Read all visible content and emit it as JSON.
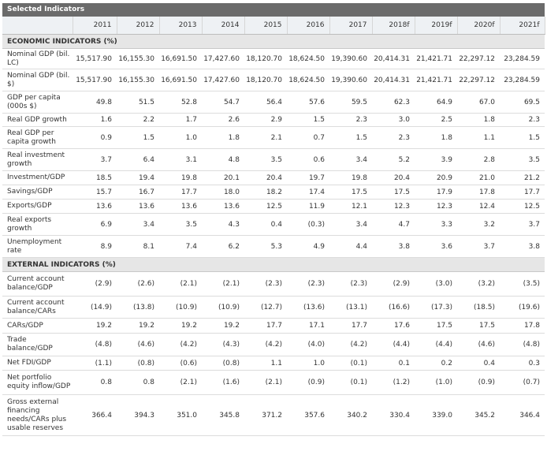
{
  "title": "Selected Indicators",
  "years": [
    "2011",
    "2012",
    "2013",
    "2014",
    "2015",
    "2016",
    "2017",
    "2018f",
    "2019f",
    "2020f",
    "2021f"
  ],
  "sections": [
    {
      "name": "ECONOMIC INDICATORS (%)",
      "rows": [
        {
          "label": "Nominal GDP (bil. LC)",
          "values": [
            "15,517.90",
            "16,155.30",
            "16,691.50",
            "17,427.60",
            "18,120.70",
            "18,624.50",
            "19,390.60",
            "20,414.31",
            "21,421.71",
            "22,297.12",
            "23,284.59"
          ]
        },
        {
          "label": "Nominal GDP (bil. $)",
          "values": [
            "15,517.90",
            "16,155.30",
            "16,691.50",
            "17,427.60",
            "18,120.70",
            "18,624.50",
            "19,390.60",
            "20,414.31",
            "21,421.71",
            "22,297.12",
            "23,284.59"
          ]
        },
        {
          "label": "GDP per capita (000s $)",
          "values": [
            "49.8",
            "51.5",
            "52.8",
            "54.7",
            "56.4",
            "57.6",
            "59.5",
            "62.3",
            "64.9",
            "67.0",
            "69.5"
          ]
        },
        {
          "label": "Real GDP growth",
          "values": [
            "1.6",
            "2.2",
            "1.7",
            "2.6",
            "2.9",
            "1.5",
            "2.3",
            "3.0",
            "2.5",
            "1.8",
            "2.3"
          ]
        },
        {
          "label": "Real GDP per capita growth",
          "values": [
            "0.9",
            "1.5",
            "1.0",
            "1.8",
            "2.1",
            "0.7",
            "1.5",
            "2.3",
            "1.8",
            "1.1",
            "1.5"
          ]
        },
        {
          "label": "Real investment growth",
          "values": [
            "3.7",
            "6.4",
            "3.1",
            "4.8",
            "3.5",
            "0.6",
            "3.4",
            "5.2",
            "3.9",
            "2.8",
            "3.5"
          ]
        },
        {
          "label": "Investment/GDP",
          "values": [
            "18.5",
            "19.4",
            "19.8",
            "20.1",
            "20.4",
            "19.7",
            "19.8",
            "20.4",
            "20.9",
            "21.0",
            "21.2"
          ]
        },
        {
          "label": "Savings/GDP",
          "values": [
            "15.7",
            "16.7",
            "17.7",
            "18.0",
            "18.2",
            "17.4",
            "17.5",
            "17.5",
            "17.9",
            "17.8",
            "17.7"
          ]
        },
        {
          "label": "Exports/GDP",
          "values": [
            "13.6",
            "13.6",
            "13.6",
            "13.6",
            "12.5",
            "11.9",
            "12.1",
            "12.3",
            "12.3",
            "12.4",
            "12.5"
          ]
        },
        {
          "label": "Real exports growth",
          "values": [
            "6.9",
            "3.4",
            "3.5",
            "4.3",
            "0.4",
            "(0.3)",
            "3.4",
            "4.7",
            "3.3",
            "3.2",
            "3.7"
          ]
        },
        {
          "label": "Unemployment rate",
          "values": [
            "8.9",
            "8.1",
            "7.4",
            "6.2",
            "5.3",
            "4.9",
            "4.4",
            "3.8",
            "3.6",
            "3.7",
            "3.8"
          ]
        }
      ]
    },
    {
      "name": "EXTERNAL INDICATORS (%)",
      "rows": [
        {
          "label": "Current account balance/GDP",
          "values": [
            "(2.9)",
            "(2.6)",
            "(2.1)",
            "(2.1)",
            "(2.3)",
            "(2.3)",
            "(2.3)",
            "(2.9)",
            "(3.0)",
            "(3.2)",
            "(3.5)"
          ]
        },
        {
          "label": "Current account balance/CARs",
          "values": [
            "(14.9)",
            "(13.8)",
            "(10.9)",
            "(10.9)",
            "(12.7)",
            "(13.6)",
            "(13.1)",
            "(16.6)",
            "(17.3)",
            "(18.5)",
            "(19.6)"
          ]
        },
        {
          "label": "CARs/GDP",
          "values": [
            "19.2",
            "19.2",
            "19.2",
            "19.2",
            "17.7",
            "17.1",
            "17.7",
            "17.6",
            "17.5",
            "17.5",
            "17.8"
          ]
        },
        {
          "label": "Trade balance/GDP",
          "values": [
            "(4.8)",
            "(4.6)",
            "(4.2)",
            "(4.3)",
            "(4.2)",
            "(4.0)",
            "(4.2)",
            "(4.4)",
            "(4.4)",
            "(4.6)",
            "(4.8)"
          ]
        },
        {
          "label": "Net FDI/GDP",
          "values": [
            "(1.1)",
            "(0.8)",
            "(0.6)",
            "(0.8)",
            "1.1",
            "1.0",
            "(0.1)",
            "0.1",
            "0.2",
            "0.4",
            "0.3"
          ]
        },
        {
          "label": "Net portfolio equity inflow/GDP",
          "values": [
            "0.8",
            "0.8",
            "(2.1)",
            "(1.6)",
            "(2.1)",
            "(0.9)",
            "(0.1)",
            "(1.2)",
            "(1.0)",
            "(0.9)",
            "(0.7)"
          ]
        },
        {
          "label": "Gross external financing needs/CARs plus usable reserves",
          "values": [
            "366.4",
            "394.3",
            "351.0",
            "345.8",
            "371.2",
            "357.6",
            "340.2",
            "330.4",
            "339.0",
            "345.2",
            "346.4"
          ]
        }
      ]
    }
  ]
}
